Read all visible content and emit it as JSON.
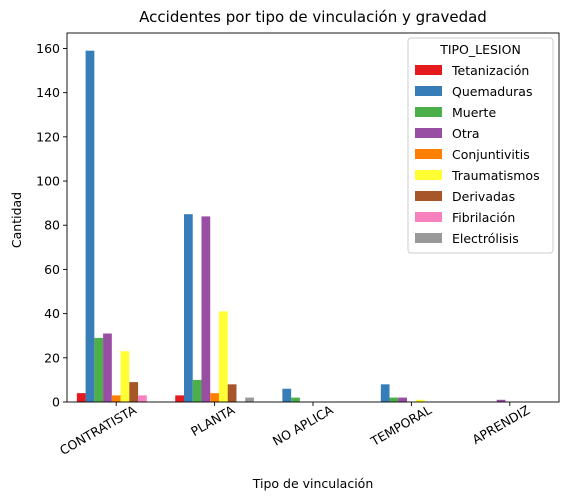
{
  "chart_data": {
    "type": "bar",
    "title": "Accidentes por tipo de vinculación y gravedad",
    "xlabel": "Tipo de vinculación",
    "ylabel": "Cantidad",
    "ylim": [
      0,
      167
    ],
    "yticks": [
      0,
      20,
      40,
      60,
      80,
      100,
      120,
      140,
      160
    ],
    "grid": false,
    "legend_title": "TIPO_LESION",
    "legend_position": "top-right",
    "categories": [
      "CONTRATISTA",
      "PLANTA",
      "NO APLICA",
      "TEMPORAL",
      "APRENDIZ"
    ],
    "series": [
      {
        "name": "Tetanización",
        "color": "#e41a1c",
        "values": [
          4,
          3,
          0,
          0,
          0
        ]
      },
      {
        "name": "Quemaduras",
        "color": "#377eb8",
        "values": [
          159,
          85,
          6,
          8,
          0
        ]
      },
      {
        "name": "Muerte",
        "color": "#4daf4a",
        "values": [
          29,
          10,
          2,
          2,
          0
        ]
      },
      {
        "name": "Otra",
        "color": "#984ea3",
        "values": [
          31,
          84,
          0,
          2,
          1
        ]
      },
      {
        "name": "Conjuntivitis",
        "color": "#ff7f00",
        "values": [
          3,
          4,
          0,
          0,
          0
        ]
      },
      {
        "name": "Traumatismos",
        "color": "#ffff33",
        "values": [
          23,
          41,
          0,
          1,
          0
        ]
      },
      {
        "name": "Derivadas",
        "color": "#a65628",
        "values": [
          9,
          8,
          0,
          0,
          0
        ]
      },
      {
        "name": "Fibrilación",
        "color": "#f781bf",
        "values": [
          3,
          0,
          0,
          0,
          0
        ]
      },
      {
        "name": "Electrólisis",
        "color": "#999999",
        "values": [
          0,
          2,
          0,
          0,
          0
        ]
      }
    ]
  }
}
